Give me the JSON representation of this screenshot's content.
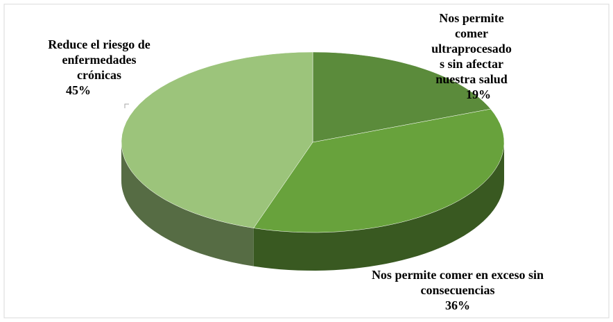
{
  "chart_data": {
    "type": "pie",
    "categories": [
      "Nos permite comer ultraprocesados sin afectar nuestra salud",
      "Nos permite comer en exceso sin consecuencias",
      "Reduce el riesgo de enfermedades crónicas"
    ],
    "values": [
      19,
      36,
      45
    ],
    "value_labels": [
      "19%",
      "36%",
      "45%"
    ],
    "colors": [
      "#5b8b3b",
      "#68a23c",
      "#9cc47b"
    ]
  }
}
